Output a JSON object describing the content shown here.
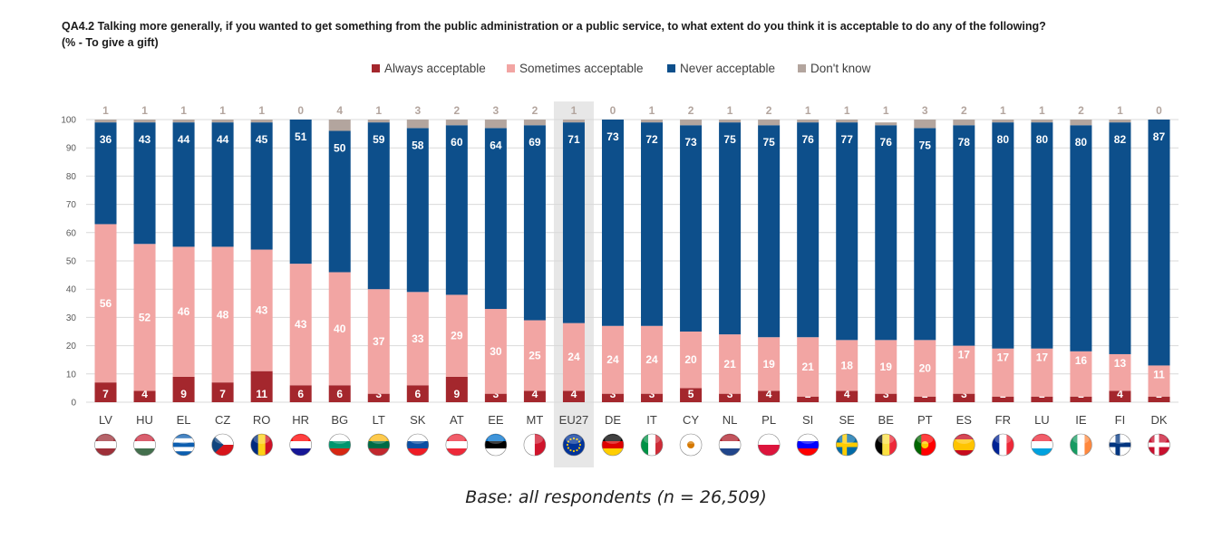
{
  "title_line1": "QA4.2 Talking more generally, if you wanted to get something from the public administration or a public service, to what extent do you think it is acceptable to do any of the following?",
  "title_line2": "(% - To give a gift)",
  "footnote": "Base: all respondents (n = 26,509)",
  "colors": {
    "always": "#a4272d",
    "sometimes": "#f2a5a3",
    "never": "#0d4f8b",
    "dontknow": "#b3a59e",
    "highlight": "#e7e7e7",
    "grid": "#d9d9d9",
    "axis_text": "#595959"
  },
  "chart_data": {
    "type": "bar",
    "stacked": true,
    "ylim": [
      0,
      100
    ],
    "yticks": [
      0,
      10,
      20,
      30,
      40,
      50,
      60,
      70,
      80,
      90,
      100
    ],
    "legend_position": "top",
    "highlighted_category": "EU27",
    "categories": [
      "LV",
      "HU",
      "EL",
      "CZ",
      "RO",
      "HR",
      "BG",
      "LT",
      "SK",
      "AT",
      "EE",
      "MT",
      "EU27",
      "DE",
      "IT",
      "CY",
      "NL",
      "PL",
      "SI",
      "SE",
      "BE",
      "PT",
      "ES",
      "FR",
      "LU",
      "IE",
      "FI",
      "DK"
    ],
    "series": [
      {
        "name": "Always acceptable",
        "key": "always",
        "values": [
          7,
          4,
          9,
          7,
          11,
          6,
          6,
          3,
          6,
          9,
          3,
          4,
          4,
          3,
          3,
          5,
          3,
          4,
          2,
          4,
          3,
          2,
          3,
          2,
          2,
          2,
          4,
          2
        ]
      },
      {
        "name": "Sometimes acceptable",
        "key": "sometimes",
        "values": [
          56,
          52,
          46,
          48,
          43,
          43,
          40,
          37,
          33,
          29,
          30,
          25,
          24,
          24,
          24,
          20,
          21,
          19,
          21,
          18,
          19,
          20,
          17,
          17,
          17,
          16,
          13,
          11
        ]
      },
      {
        "name": "Never acceptable",
        "key": "never",
        "values": [
          36,
          43,
          44,
          44,
          45,
          51,
          50,
          59,
          58,
          60,
          64,
          69,
          71,
          73,
          72,
          73,
          75,
          75,
          76,
          77,
          76,
          75,
          78,
          80,
          80,
          80,
          82,
          87
        ]
      },
      {
        "name": "Don't know",
        "key": "dontknow",
        "values": [
          1,
          1,
          1,
          1,
          1,
          0,
          4,
          1,
          3,
          2,
          3,
          2,
          1,
          0,
          1,
          2,
          1,
          2,
          1,
          1,
          1,
          3,
          2,
          1,
          1,
          2,
          1,
          0
        ]
      }
    ]
  },
  "flags": [
    {
      "country": "LV",
      "icon": "flag-latvia-icon",
      "stripes": "h",
      "colors": [
        "#9e3039",
        "#ffffff",
        "#9e3039"
      ]
    },
    {
      "country": "HU",
      "icon": "flag-hungary-icon",
      "stripes": "h",
      "colors": [
        "#cd2a3e",
        "#ffffff",
        "#436f4d"
      ]
    },
    {
      "country": "EL",
      "icon": "flag-greece-icon",
      "stripes": "h",
      "colors": [
        "#0d5eaf",
        "#ffffff",
        "#0d5eaf",
        "#ffffff",
        "#0d5eaf"
      ]
    },
    {
      "country": "CZ",
      "icon": "flag-czechia-icon",
      "stripes": "h",
      "colors": [
        "#ffffff",
        "#d7141a"
      ],
      "triangle": "#11457e"
    },
    {
      "country": "RO",
      "icon": "flag-romania-icon",
      "stripes": "v",
      "colors": [
        "#002b7f",
        "#fcd116",
        "#ce1126"
      ]
    },
    {
      "country": "HR",
      "icon": "flag-croatia-icon",
      "stripes": "h",
      "colors": [
        "#ff0000",
        "#ffffff",
        "#171796"
      ]
    },
    {
      "country": "BG",
      "icon": "flag-bulgaria-icon",
      "stripes": "h",
      "colors": [
        "#ffffff",
        "#00966e",
        "#d62612"
      ]
    },
    {
      "country": "LT",
      "icon": "flag-lithuania-icon",
      "stripes": "h",
      "colors": [
        "#fdb913",
        "#006a44",
        "#c1272d"
      ]
    },
    {
      "country": "SK",
      "icon": "flag-slovakia-icon",
      "stripes": "h",
      "colors": [
        "#ffffff",
        "#0b4ea2",
        "#ee1c25"
      ]
    },
    {
      "country": "AT",
      "icon": "flag-austria-icon",
      "stripes": "h",
      "colors": [
        "#ed2939",
        "#ffffff",
        "#ed2939"
      ]
    },
    {
      "country": "EE",
      "icon": "flag-estonia-icon",
      "stripes": "h",
      "colors": [
        "#0072ce",
        "#000000",
        "#ffffff"
      ]
    },
    {
      "country": "MT",
      "icon": "flag-malta-icon",
      "stripes": "v",
      "colors": [
        "#ffffff",
        "#cf142b"
      ]
    },
    {
      "country": "EU27",
      "icon": "flag-eu-icon",
      "stripes": "h",
      "colors": [
        "#003399"
      ],
      "stars": true
    },
    {
      "country": "DE",
      "icon": "flag-germany-icon",
      "stripes": "h",
      "colors": [
        "#000000",
        "#dd0000",
        "#ffce00"
      ]
    },
    {
      "country": "IT",
      "icon": "flag-italy-icon",
      "stripes": "v",
      "colors": [
        "#009246",
        "#ffffff",
        "#ce2b37"
      ]
    },
    {
      "country": "CY",
      "icon": "flag-cyprus-icon",
      "stripes": "h",
      "colors": [
        "#ffffff"
      ],
      "dot": "#d57800"
    },
    {
      "country": "NL",
      "icon": "flag-netherlands-icon",
      "stripes": "h",
      "colors": [
        "#ae1c28",
        "#ffffff",
        "#21468b"
      ]
    },
    {
      "country": "PL",
      "icon": "flag-poland-icon",
      "stripes": "h",
      "colors": [
        "#ffffff",
        "#dc143c"
      ]
    },
    {
      "country": "SI",
      "icon": "flag-slovenia-icon",
      "stripes": "h",
      "colors": [
        "#ffffff",
        "#0000ff",
        "#ff0000"
      ]
    },
    {
      "country": "SE",
      "icon": "flag-sweden-icon",
      "stripes": "h",
      "colors": [
        "#006aa7"
      ],
      "cross": "#fecc00"
    },
    {
      "country": "BE",
      "icon": "flag-belgium-icon",
      "stripes": "v",
      "colors": [
        "#000000",
        "#fae042",
        "#ed2939"
      ]
    },
    {
      "country": "PT",
      "icon": "flag-portugal-icon",
      "stripes": "v",
      "colors": [
        "#006600",
        "#ff0000",
        "#ff0000"
      ],
      "dot": "#ffcc00"
    },
    {
      "country": "ES",
      "icon": "flag-spain-icon",
      "stripes": "h",
      "colors": [
        "#c60b1e",
        "#ffc400",
        "#ffc400",
        "#c60b1e"
      ]
    },
    {
      "country": "FR",
      "icon": "flag-france-icon",
      "stripes": "v",
      "colors": [
        "#002395",
        "#ffffff",
        "#ed2939"
      ]
    },
    {
      "country": "LU",
      "icon": "flag-luxembourg-icon",
      "stripes": "h",
      "colors": [
        "#ed2939",
        "#ffffff",
        "#00a1de"
      ]
    },
    {
      "country": "IE",
      "icon": "flag-ireland-icon",
      "stripes": "v",
      "colors": [
        "#169b62",
        "#ffffff",
        "#ff883e"
      ]
    },
    {
      "country": "FI",
      "icon": "flag-finland-icon",
      "stripes": "h",
      "colors": [
        "#ffffff"
      ],
      "cross": "#003580"
    },
    {
      "country": "DK",
      "icon": "flag-denmark-icon",
      "stripes": "h",
      "colors": [
        "#c8102e"
      ],
      "cross": "#ffffff"
    }
  ]
}
